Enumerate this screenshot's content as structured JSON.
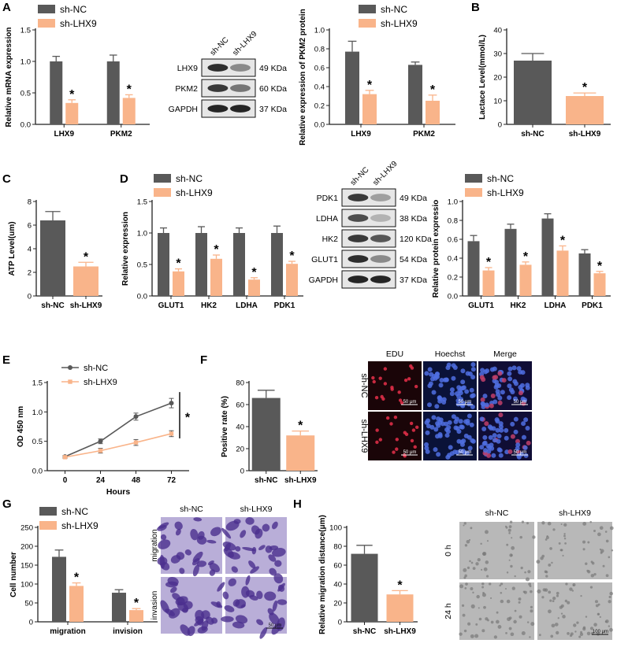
{
  "panels": [
    "A",
    "B",
    "C",
    "D",
    "E",
    "F",
    "G",
    "H"
  ],
  "colors": {
    "nc": "#595959",
    "lhx9": "#F9B48A",
    "axis": "#222222"
  },
  "legend": {
    "nc": "sh-NC",
    "lhx9": "sh-LHX9"
  },
  "sig": "*",
  "blotA": {
    "lanes": [
      "sh-NC",
      "sh-LHX9"
    ],
    "rows": [
      {
        "name": "LHX9",
        "kda": "49 KDa"
      },
      {
        "name": "PKM2",
        "kda": "60 KDa"
      },
      {
        "name": "GAPDH",
        "kda": "37 KDa"
      }
    ]
  },
  "blotD": {
    "lanes": [
      "sh-NC",
      "sh-LHX9"
    ],
    "rows": [
      {
        "name": "PDK1",
        "kda": "49 KDa"
      },
      {
        "name": "LDHA",
        "kda": "38 KDa"
      },
      {
        "name": "HK2",
        "kda": "120 KDa"
      },
      {
        "name": "GLUT1",
        "kda": "54 KDa"
      },
      {
        "name": "GAPDH",
        "kda": "37 KDa"
      }
    ]
  },
  "micF": {
    "cols": [
      "EDU",
      "Hoechst",
      "Merge"
    ],
    "rows": [
      "sh-NC",
      "sh-LHX9"
    ],
    "scale": "50 μm"
  },
  "micG": {
    "cols": [
      "sh-NC",
      "sh-LHX9"
    ],
    "rows": [
      "migration",
      "invasion"
    ],
    "scale": "50 μm"
  },
  "micH": {
    "cols": [
      "sh-NC",
      "sh-LHX9"
    ],
    "rows": [
      "0 h",
      "24 h"
    ],
    "scale": "100 μm"
  },
  "chart_data": [
    {
      "id": "A1",
      "type": "bar",
      "title": "",
      "ylabel": "Relative mRNA expression",
      "xlabel": "",
      "categories": [
        "LHX9",
        "PKM2"
      ],
      "ylim": [
        0,
        1.5
      ],
      "yticks": [
        0,
        0.5,
        1.0,
        1.5
      ],
      "series": [
        {
          "name": "sh-NC",
          "values": [
            1.0,
            1.0
          ],
          "errors": [
            0.08,
            0.1
          ]
        },
        {
          "name": "sh-LHX9",
          "values": [
            0.34,
            0.42
          ],
          "errors": [
            0.05,
            0.05
          ]
        }
      ],
      "significant": [
        true,
        true
      ],
      "legend": "top-left"
    },
    {
      "id": "A2",
      "type": "bar",
      "title": "",
      "ylabel": "Relative expression of PKM2 protein",
      "xlabel": "",
      "categories": [
        "LHX9",
        "PKM2"
      ],
      "ylim": [
        0,
        1.0
      ],
      "yticks": [
        0,
        0.2,
        0.4,
        0.6,
        0.8,
        1.0
      ],
      "series": [
        {
          "name": "sh-NC",
          "values": [
            0.77,
            0.63
          ],
          "errors": [
            0.11,
            0.03
          ]
        },
        {
          "name": "sh-LHX9",
          "values": [
            0.32,
            0.25
          ],
          "errors": [
            0.04,
            0.06
          ]
        }
      ],
      "significant": [
        true,
        true
      ],
      "legend": "top-right"
    },
    {
      "id": "B",
      "type": "bar",
      "title": "",
      "ylabel": "Lactace Level(mmol/L)",
      "xlabel": "",
      "categories": [
        "sh-NC",
        "sh-LHX9"
      ],
      "ylim": [
        0,
        40
      ],
      "yticks": [
        0,
        10,
        20,
        30,
        40
      ],
      "series": [
        {
          "name": "value",
          "values": [
            27,
            12
          ],
          "errors": [
            3,
            1.3
          ]
        }
      ],
      "significant": [
        false,
        true
      ],
      "legend": "none"
    },
    {
      "id": "C",
      "type": "bar",
      "title": "",
      "ylabel": "ATP Level(um)",
      "xlabel": "",
      "categories": [
        "sh-NC",
        "sh-LHX9"
      ],
      "ylim": [
        0,
        8
      ],
      "yticks": [
        0,
        2,
        4,
        6,
        8
      ],
      "series": [
        {
          "name": "value",
          "values": [
            6.4,
            2.5
          ],
          "errors": [
            0.75,
            0.35
          ]
        }
      ],
      "significant": [
        false,
        true
      ],
      "legend": "none"
    },
    {
      "id": "D1",
      "type": "bar",
      "title": "",
      "ylabel": "Relative expression",
      "xlabel": "",
      "categories": [
        "GLUT1",
        "HK2",
        "LDHA",
        "PDK1"
      ],
      "ylim": [
        0,
        1.5
      ],
      "yticks": [
        0,
        0.5,
        1.0,
        1.5
      ],
      "series": [
        {
          "name": "sh-NC",
          "values": [
            1.0,
            1.0,
            1.0,
            1.0
          ],
          "errors": [
            0.08,
            0.1,
            0.08,
            0.11
          ]
        },
        {
          "name": "sh-LHX9",
          "values": [
            0.39,
            0.59,
            0.26,
            0.51
          ],
          "errors": [
            0.04,
            0.06,
            0.03,
            0.04
          ]
        }
      ],
      "significant": [
        true,
        true,
        true,
        true
      ],
      "legend": "top-left"
    },
    {
      "id": "D2",
      "type": "bar",
      "title": "",
      "ylabel": "Relative  protein expressio",
      "xlabel": "",
      "categories": [
        "GLUT1",
        "HK2",
        "LDHA",
        "PDK1"
      ],
      "ylim": [
        0,
        1.0
      ],
      "yticks": [
        0,
        0.2,
        0.4,
        0.6,
        0.8,
        1.0
      ],
      "series": [
        {
          "name": "sh-NC",
          "values": [
            0.58,
            0.71,
            0.82,
            0.45
          ],
          "errors": [
            0.06,
            0.05,
            0.05,
            0.04
          ]
        },
        {
          "name": "sh-LHX9",
          "values": [
            0.27,
            0.33,
            0.48,
            0.24
          ],
          "errors": [
            0.03,
            0.03,
            0.05,
            0.02
          ]
        }
      ],
      "significant": [
        true,
        true,
        true,
        true
      ],
      "legend": "top-left"
    },
    {
      "id": "E",
      "type": "line",
      "title": "",
      "ylabel": "OD 450 nm",
      "xlabel": "Hours",
      "x": [
        0,
        24,
        48,
        72
      ],
      "xlim": [
        -12,
        84
      ],
      "ylim": [
        0,
        1.5
      ],
      "yticks": [
        0,
        0.5,
        1.0,
        1.5
      ],
      "series": [
        {
          "name": "sh-NC",
          "values": [
            0.24,
            0.5,
            0.92,
            1.15
          ],
          "errors": [
            0.02,
            0.04,
            0.06,
            0.08
          ]
        },
        {
          "name": "sh-LHX9",
          "values": [
            0.23,
            0.34,
            0.48,
            0.63
          ],
          "errors": [
            0.02,
            0.04,
            0.05,
            0.05
          ]
        }
      ],
      "bracket": "*",
      "legend": "top-left"
    },
    {
      "id": "F",
      "type": "bar",
      "title": "",
      "ylabel": "Positive rate (%)",
      "xlabel": "",
      "categories": [
        "sh-NC",
        "sh-LHX9"
      ],
      "ylim": [
        0,
        80
      ],
      "yticks": [
        0,
        20,
        40,
        60,
        80
      ],
      "series": [
        {
          "name": "value",
          "values": [
            66,
            32
          ],
          "errors": [
            7,
            4
          ]
        }
      ],
      "significant": [
        false,
        true
      ],
      "legend": "none"
    },
    {
      "id": "G",
      "type": "bar",
      "title": "",
      "ylabel": "Cell number",
      "xlabel": "",
      "categories": [
        "migration",
        "invision"
      ],
      "ylim": [
        0,
        250
      ],
      "yticks": [
        0,
        50,
        100,
        150,
        200,
        250
      ],
      "series": [
        {
          "name": "sh-NC",
          "values": [
            172,
            77
          ],
          "errors": [
            18,
            8
          ]
        },
        {
          "name": "sh-LHX9",
          "values": [
            95,
            31
          ],
          "errors": [
            8,
            4
          ]
        }
      ],
      "significant": [
        true,
        true
      ],
      "legend": "top-left"
    },
    {
      "id": "H",
      "type": "bar",
      "title": "",
      "ylabel": "Relative migration distance(μm)",
      "xlabel": "",
      "categories": [
        "sh-NC",
        "sh-LHX9"
      ],
      "ylim": [
        0,
        100
      ],
      "yticks": [
        0,
        20,
        40,
        60,
        80,
        100
      ],
      "series": [
        {
          "name": "value",
          "values": [
            72,
            29
          ],
          "errors": [
            9,
            4
          ]
        }
      ],
      "significant": [
        false,
        true
      ],
      "legend": "none"
    }
  ]
}
